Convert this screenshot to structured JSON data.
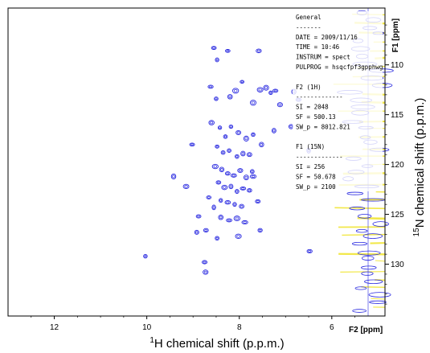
{
  "chart_data": {
    "type": "scatter",
    "title": "",
    "xlabel_prefix": "1",
    "xlabel": "H chemical shift (p.p.m.)",
    "ylabel_prefix": "15",
    "ylabel": "N chemical shift (p.p.m.)",
    "xlim": [
      13.0,
      4.85
    ],
    "ylim": [
      104.3,
      135.2
    ],
    "x_ticks": [
      12,
      10,
      8,
      6
    ],
    "y_ticks": [
      110,
      115,
      120,
      125,
      130
    ],
    "x_unit_label": "F2 [ppm]",
    "y_unit_label": "F1 [ppm]",
    "contour_color": "#2a2ae0",
    "projection_color": "#f2e84a",
    "peaks": [
      {
        "x": 10.03,
        "y": 129.2
      },
      {
        "x": 9.42,
        "y": 121.2
      },
      {
        "x": 9.15,
        "y": 122.2
      },
      {
        "x": 9.02,
        "y": 118.0
      },
      {
        "x": 8.88,
        "y": 125.2
      },
      {
        "x": 8.72,
        "y": 126.6
      },
      {
        "x": 8.92,
        "y": 126.8
      },
      {
        "x": 8.75,
        "y": 129.8
      },
      {
        "x": 8.73,
        "y": 130.8
      },
      {
        "x": 8.55,
        "y": 108.3
      },
      {
        "x": 8.48,
        "y": 109.5
      },
      {
        "x": 8.25,
        "y": 108.6
      },
      {
        "x": 8.62,
        "y": 112.2
      },
      {
        "x": 8.5,
        "y": 113.4
      },
      {
        "x": 8.2,
        "y": 113.2
      },
      {
        "x": 8.08,
        "y": 112.6
      },
      {
        "x": 7.94,
        "y": 111.7
      },
      {
        "x": 7.7,
        "y": 113.8
      },
      {
        "x": 7.55,
        "y": 112.5
      },
      {
        "x": 7.42,
        "y": 112.3
      },
      {
        "x": 7.32,
        "y": 112.8
      },
      {
        "x": 7.22,
        "y": 112.6
      },
      {
        "x": 7.58,
        "y": 108.6
      },
      {
        "x": 6.82,
        "y": 112.7
      },
      {
        "x": 6.72,
        "y": 113.5
      },
      {
        "x": 8.6,
        "y": 115.8
      },
      {
        "x": 8.42,
        "y": 116.3
      },
      {
        "x": 8.3,
        "y": 117.2
      },
      {
        "x": 8.18,
        "y": 116.2
      },
      {
        "x": 8.02,
        "y": 116.8
      },
      {
        "x": 7.85,
        "y": 117.4
      },
      {
        "x": 7.7,
        "y": 117.0
      },
      {
        "x": 8.48,
        "y": 118.2
      },
      {
        "x": 8.35,
        "y": 118.8
      },
      {
        "x": 8.22,
        "y": 118.6
      },
      {
        "x": 8.05,
        "y": 119.2
      },
      {
        "x": 7.92,
        "y": 118.9
      },
      {
        "x": 7.78,
        "y": 119.0
      },
      {
        "x": 8.52,
        "y": 120.2
      },
      {
        "x": 8.38,
        "y": 120.5
      },
      {
        "x": 8.25,
        "y": 120.9
      },
      {
        "x": 8.12,
        "y": 121.1
      },
      {
        "x": 7.98,
        "y": 120.6
      },
      {
        "x": 7.85,
        "y": 121.3
      },
      {
        "x": 7.72,
        "y": 120.7
      },
      {
        "x": 8.45,
        "y": 121.8
      },
      {
        "x": 8.32,
        "y": 122.3
      },
      {
        "x": 8.18,
        "y": 122.2
      },
      {
        "x": 8.05,
        "y": 122.7
      },
      {
        "x": 7.92,
        "y": 122.4
      },
      {
        "x": 7.78,
        "y": 122.6
      },
      {
        "x": 8.4,
        "y": 123.6
      },
      {
        "x": 8.25,
        "y": 123.8
      },
      {
        "x": 8.1,
        "y": 124.0
      },
      {
        "x": 7.95,
        "y": 124.2
      },
      {
        "x": 8.55,
        "y": 124.3
      },
      {
        "x": 8.4,
        "y": 125.3
      },
      {
        "x": 8.22,
        "y": 125.6
      },
      {
        "x": 8.05,
        "y": 125.4
      },
      {
        "x": 7.88,
        "y": 125.8
      },
      {
        "x": 7.55,
        "y": 126.6
      },
      {
        "x": 8.02,
        "y": 127.2
      },
      {
        "x": 7.7,
        "y": 121.2
      },
      {
        "x": 7.52,
        "y": 118.0
      },
      {
        "x": 7.25,
        "y": 116.6
      },
      {
        "x": 7.12,
        "y": 114.0
      },
      {
        "x": 6.88,
        "y": 116.2
      },
      {
        "x": 8.48,
        "y": 127.4
      },
      {
        "x": 8.66,
        "y": 123.3
      },
      {
        "x": 7.6,
        "y": 123.7
      },
      {
        "x": 6.5,
        "y": 118.6
      },
      {
        "x": 6.48,
        "y": 128.7
      }
    ]
  },
  "parameters": [
    "General",
    "-------",
    "DATE = 2009/11/16",
    "TIME = 10:46",
    "INSTRUM = spect",
    "PULPROG = hsqcfpf3gpphwg",
    "",
    "F2 (1H)",
    "-------------",
    "SI = 2048",
    "SF = 500.13",
    "SW_p = 8012.821",
    "",
    "F1 (15N)",
    "-------------",
    "SI = 256",
    "SF = 50.678",
    "SW_p = 2100"
  ]
}
